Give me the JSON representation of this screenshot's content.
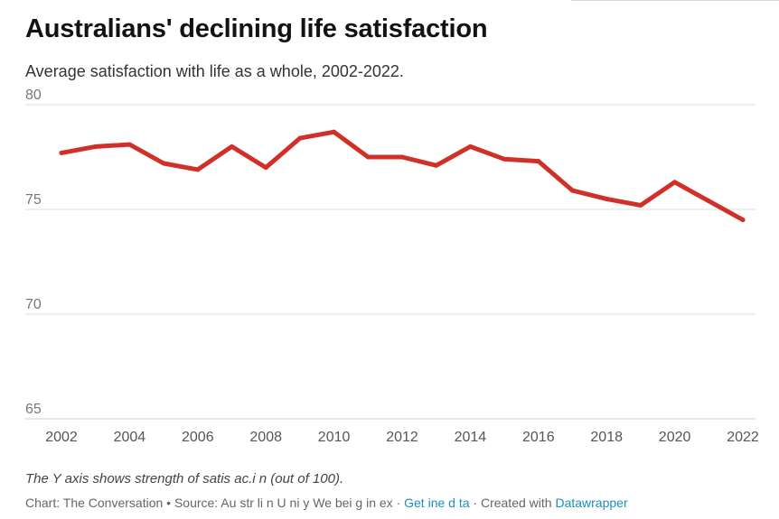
{
  "title": "Australians' declining life satisfaction",
  "subtitle": "Average satisfaction with life as a whole, 2002-2022.",
  "note": "The Y axis shows strength of satis ac.i n (out of 100).",
  "footer": {
    "prefix": "Chart: The Conversation • Source: Au str li n U ni y We bei g in ex · ",
    "get_data": "Get ine d ta",
    "created": " · Created with ",
    "datawrapper": "Datawrapper"
  },
  "colors": {
    "line": "#d1302a",
    "grid": "#dddddd",
    "axis_text": "#777777",
    "link": "#1a8fbf"
  },
  "chart_data": {
    "type": "line",
    "title": "Australians' declining life satisfaction",
    "subtitle": "Average satisfaction with life as a whole, 2002-2022.",
    "xlabel": "",
    "ylabel": "",
    "ylim": [
      65,
      80
    ],
    "yticks": [
      65,
      70,
      75,
      80
    ],
    "xticks": [
      2002,
      2004,
      2006,
      2008,
      2010,
      2012,
      2014,
      2016,
      2018,
      2020,
      2022
    ],
    "grid": true,
    "x": [
      2002,
      2003,
      2004,
      2005,
      2006,
      2007,
      2008,
      2009,
      2010,
      2011,
      2012,
      2013,
      2014,
      2015,
      2016,
      2017,
      2018,
      2019,
      2020,
      2021,
      2022
    ],
    "series": [
      {
        "values": [
          77.7,
          78.0,
          78.1,
          77.2,
          76.9,
          78.0,
          77.0,
          78.4,
          78.7,
          77.5,
          77.5,
          77.1,
          78.0,
          77.4,
          77.3,
          75.9,
          75.5,
          75.2,
          76.3,
          75.4,
          74.5
        ]
      }
    ]
  }
}
